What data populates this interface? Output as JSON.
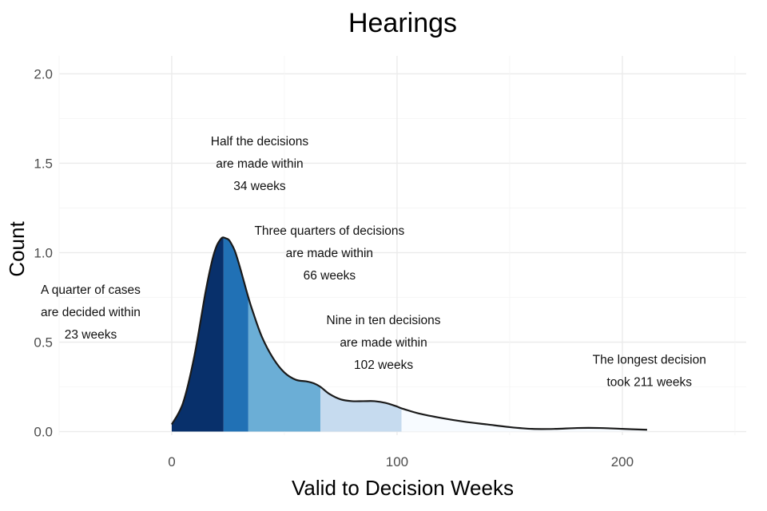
{
  "chart_data": {
    "type": "area",
    "title": "Hearings",
    "xlabel": "Valid to Decision Weeks",
    "ylabel": "Count",
    "xlim": [
      -50,
      255
    ],
    "ylim": [
      -0.02,
      2.1
    ],
    "x_ticks": [
      0,
      100,
      200
    ],
    "x_tick_labels": [
      "0",
      "100",
      "200"
    ],
    "y_ticks": [
      0.0,
      0.5,
      1.0,
      1.5,
      2.0
    ],
    "y_tick_labels": [
      "0.0",
      "0.5",
      "1.0",
      "1.5",
      "2.0"
    ],
    "grid": true,
    "density_curve": {
      "x": [
        0,
        5,
        10,
        15,
        18,
        20,
        22,
        23,
        24,
        25,
        26,
        28,
        30,
        32,
        34,
        36,
        40,
        45,
        50,
        55,
        60,
        63,
        66,
        70,
        75,
        80,
        85,
        90,
        95,
        100,
        102,
        110,
        120,
        130,
        140,
        150,
        160,
        170,
        180,
        190,
        200,
        211
      ],
      "y": [
        0.04,
        0.16,
        0.42,
        0.78,
        0.96,
        1.04,
        1.08,
        1.085,
        1.08,
        1.075,
        1.06,
        1.01,
        0.93,
        0.84,
        0.75,
        0.67,
        0.53,
        0.41,
        0.33,
        0.29,
        0.28,
        0.27,
        0.25,
        0.21,
        0.18,
        0.17,
        0.17,
        0.17,
        0.16,
        0.14,
        0.13,
        0.1,
        0.075,
        0.055,
        0.04,
        0.025,
        0.015,
        0.015,
        0.02,
        0.02,
        0.015,
        0.01
      ]
    },
    "quantile_bands": [
      {
        "from": 0,
        "to": 23,
        "color": "#08306b"
      },
      {
        "from": 23,
        "to": 34,
        "color": "#2171b5"
      },
      {
        "from": 34,
        "to": 66,
        "color": "#6baed6"
      },
      {
        "from": 66,
        "to": 102,
        "color": "#c6dbef"
      },
      {
        "from": 102,
        "to": 211,
        "color": "#f7fbff"
      }
    ],
    "annotations": [
      {
        "x": -36,
        "y": 0.77,
        "lines": [
          "A quarter of cases",
          "are decided within",
          "23 weeks"
        ]
      },
      {
        "x": 39,
        "y": 1.6,
        "lines": [
          "Half the decisions",
          "are made within",
          "34 weeks"
        ]
      },
      {
        "x": 70,
        "y": 1.1,
        "lines": [
          "Three quarters of decisions",
          "are made within",
          "66 weeks"
        ]
      },
      {
        "x": 94,
        "y": 0.6,
        "lines": [
          "Nine in ten decisions",
          "are made within",
          "102 weeks"
        ]
      },
      {
        "x": 212,
        "y": 0.38,
        "lines": [
          "The longest decision",
          "took 211 weeks"
        ]
      }
    ],
    "curve_color": "#1a1a1a"
  }
}
